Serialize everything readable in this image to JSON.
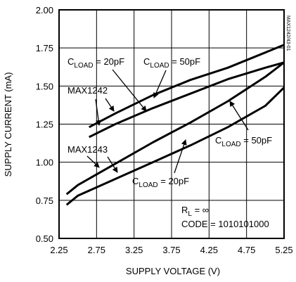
{
  "chart_data": {
    "type": "line",
    "title": "",
    "xlabel": "SUPPLY VOLTAGE (V)",
    "ylabel": "SUPPLY CURRENT (mA)",
    "xlim": [
      2.25,
      5.25
    ],
    "ylim": [
      0.5,
      2.0
    ],
    "x_ticks": [
      2.25,
      2.75,
      3.25,
      3.75,
      4.25,
      4.75,
      5.25
    ],
    "x_tick_labels": [
      "2.25",
      "2.75",
      "3.25",
      "3.75",
      "4.25",
      "4.75",
      "5.25"
    ],
    "y_ticks": [
      0.5,
      0.75,
      1.0,
      1.25,
      1.5,
      1.75,
      2.0
    ],
    "y_tick_labels": [
      "0.50",
      "0.75",
      "1.00",
      "1.25",
      "1.50",
      "1.75",
      "2.00"
    ],
    "grid": true,
    "figure_id": "MAX1242/43-01",
    "conditions": {
      "rl": "RL = ∞",
      "code": "CODE = 1010101000"
    },
    "series": [
      {
        "x": [
          2.65,
          3.0,
          3.5,
          4.0,
          4.5,
          5.0,
          5.25
        ],
        "values": [
          1.23,
          1.32,
          1.44,
          1.54,
          1.62,
          1.72,
          1.77
        ]
      },
      {
        "x": [
          2.65,
          3.0,
          3.5,
          4.0,
          4.5,
          5.0,
          5.25
        ],
        "values": [
          1.165,
          1.25,
          1.355,
          1.45,
          1.545,
          1.62,
          1.655
        ]
      },
      {
        "x": [
          2.35,
          2.5,
          3.0,
          3.5,
          4.0,
          4.5,
          5.0,
          5.25
        ],
        "values": [
          0.79,
          0.85,
          0.99,
          1.13,
          1.26,
          1.4,
          1.56,
          1.655
        ]
      },
      {
        "x": [
          2.35,
          2.5,
          3.0,
          3.5,
          4.0,
          4.5,
          5.0,
          5.25
        ],
        "values": [
          0.72,
          0.78,
          0.89,
          1.0,
          1.11,
          1.23,
          1.37,
          1.49
        ]
      }
    ],
    "annotations": [
      {
        "id": "cload20-upper",
        "main": "C",
        "sub": "LOAD",
        "suffix": " = 20pF"
      },
      {
        "id": "cload50-upper",
        "main": "C",
        "sub": "LOAD",
        "suffix": " = 50pF"
      },
      {
        "id": "max1242",
        "text": "MAX1242"
      },
      {
        "id": "max1243",
        "text": "MAX1243"
      },
      {
        "id": "cload50-lower",
        "main": "C",
        "sub": "LOAD",
        "suffix": " = 50pF"
      },
      {
        "id": "cload20-lower",
        "main": "C",
        "sub": "LOAD",
        "suffix": " = 20pF"
      }
    ]
  }
}
